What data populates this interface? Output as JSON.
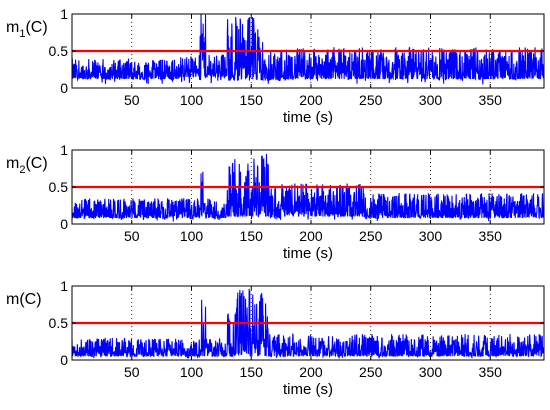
{
  "chart_data": [
    {
      "type": "line",
      "ylabel": {
        "main": "m",
        "sub": "1",
        "suffix": "(C)"
      },
      "xlabel": "time (s)",
      "xlim": [
        0,
        395
      ],
      "ylim": [
        0,
        1
      ],
      "x_ticks": [
        50,
        100,
        150,
        200,
        250,
        300,
        350
      ],
      "y_ticks": [
        0,
        0.5,
        1
      ],
      "y_tick_labels": [
        "0",
        "0.5",
        "1"
      ],
      "grid": "x-dotted",
      "threshold": 0.5,
      "series": [
        {
          "color": "#0000ff",
          "profile": [
            {
              "x": [
                0,
                90
              ],
              "base": 0.12,
              "peak": 0.4
            },
            {
              "x": [
                90,
                107
              ],
              "base": 0.15,
              "peak": 0.45
            },
            {
              "x": [
                107,
                112
              ],
              "base": 0.1,
              "peak": 1.0
            },
            {
              "x": [
                112,
                130
              ],
              "base": 0.15,
              "peak": 0.45
            },
            {
              "x": [
                130,
                160
              ],
              "base": 0.1,
              "peak": 1.0
            },
            {
              "x": [
                160,
                175
              ],
              "base": 0.1,
              "peak": 0.5
            },
            {
              "x": [
                175,
                395
              ],
              "base": 0.12,
              "peak": 0.55
            }
          ]
        }
      ]
    },
    {
      "type": "line",
      "ylabel": {
        "main": "m",
        "sub": "2",
        "suffix": "(C)"
      },
      "xlabel": "time (s)",
      "xlim": [
        0,
        395
      ],
      "ylim": [
        0,
        1
      ],
      "x_ticks": [
        50,
        100,
        150,
        200,
        250,
        300,
        350
      ],
      "y_ticks": [
        0,
        0.5,
        1
      ],
      "y_tick_labels": [
        "0",
        "0.5",
        "1"
      ],
      "grid": "x-dotted",
      "threshold": 0.5,
      "series": [
        {
          "color": "#0000ff",
          "profile": [
            {
              "x": [
                0,
                108
              ],
              "base": 0.08,
              "peak": 0.35
            },
            {
              "x": [
                108,
                111
              ],
              "base": 0.1,
              "peak": 0.75
            },
            {
              "x": [
                111,
                130
              ],
              "base": 0.08,
              "peak": 0.35
            },
            {
              "x": [
                130,
                165
              ],
              "base": 0.1,
              "peak": 0.95
            },
            {
              "x": [
                165,
                175
              ],
              "base": 0.08,
              "peak": 0.5
            },
            {
              "x": [
                175,
                245
              ],
              "base": 0.1,
              "peak": 0.55
            },
            {
              "x": [
                245,
                395
              ],
              "base": 0.08,
              "peak": 0.42
            }
          ]
        }
      ]
    },
    {
      "type": "line",
      "ylabel": {
        "main": "m",
        "sub": "",
        "suffix": "(C)"
      },
      "xlabel": "time (s)",
      "xlim": [
        0,
        395
      ],
      "ylim": [
        0,
        1
      ],
      "x_ticks": [
        50,
        100,
        150,
        200,
        250,
        300,
        350
      ],
      "y_ticks": [
        0,
        0.5,
        1
      ],
      "y_tick_labels": [
        "0",
        "0.5",
        "1"
      ],
      "grid": "x-dotted",
      "threshold": 0.5,
      "series": [
        {
          "color": "#0000ff",
          "profile": [
            {
              "x": [
                0,
                108
              ],
              "base": 0.05,
              "peak": 0.3
            },
            {
              "x": [
                108,
                112
              ],
              "base": 0.05,
              "peak": 1.0
            },
            {
              "x": [
                112,
                130
              ],
              "base": 0.05,
              "peak": 0.3
            },
            {
              "x": [
                130,
                165
              ],
              "base": 0.05,
              "peak": 1.0
            },
            {
              "x": [
                165,
                395
              ],
              "base": 0.05,
              "peak": 0.35
            }
          ]
        }
      ]
    }
  ],
  "colors": {
    "series": "#0000ff",
    "threshold": "#ff0000",
    "axes": "#000000",
    "background": "#ffffff"
  }
}
